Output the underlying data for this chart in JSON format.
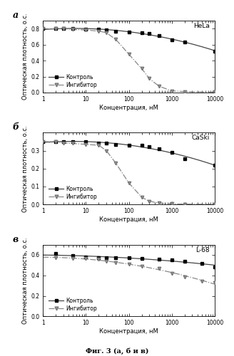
{
  "panels": [
    {
      "label": "а",
      "cell_line": "HeLa",
      "ylim": [
        0.0,
        0.9
      ],
      "yticks": [
        0.0,
        0.2,
        0.4,
        0.6,
        0.8
      ],
      "ctrl_x": [
        1,
        2,
        3,
        5,
        10,
        20,
        30,
        50,
        100,
        200,
        300,
        500,
        1000,
        2000,
        10000
      ],
      "ctrl_y": [
        0.8,
        0.8,
        0.8,
        0.8,
        0.795,
        0.79,
        0.785,
        0.765,
        0.76,
        0.752,
        0.742,
        0.718,
        0.66,
        0.63,
        0.52
      ],
      "inh_x": [
        1,
        2,
        3,
        5,
        10,
        20,
        30,
        50,
        100,
        200,
        300,
        500,
        1000,
        2000,
        10000
      ],
      "inh_y": [
        0.8,
        0.8,
        0.8,
        0.79,
        0.785,
        0.77,
        0.75,
        0.665,
        0.48,
        0.3,
        0.175,
        0.08,
        0.02,
        0.01,
        0.005
      ],
      "inh_fit_sigmoid": true
    },
    {
      "label": "б",
      "cell_line": "CaSki",
      "ylim": [
        0.0,
        0.4
      ],
      "yticks": [
        0.0,
        0.1,
        0.2,
        0.3
      ],
      "ctrl_x": [
        1,
        2,
        3,
        5,
        10,
        20,
        30,
        50,
        100,
        200,
        300,
        500,
        1000,
        2000,
        10000
      ],
      "ctrl_y": [
        0.35,
        0.35,
        0.35,
        0.35,
        0.35,
        0.342,
        0.34,
        0.332,
        0.33,
        0.33,
        0.322,
        0.31,
        0.29,
        0.255,
        0.22
      ],
      "inh_x": [
        1,
        2,
        3,
        5,
        10,
        20,
        30,
        50,
        100,
        200,
        300,
        500,
        1000,
        2000,
        10000
      ],
      "inh_y": [
        0.35,
        0.35,
        0.342,
        0.34,
        0.335,
        0.33,
        0.3,
        0.23,
        0.12,
        0.04,
        0.018,
        0.008,
        0.003,
        0.002,
        0.001
      ],
      "inh_fit_sigmoid": true
    },
    {
      "label": "в",
      "cell_line": "L-68",
      "ylim": [
        0.0,
        0.7
      ],
      "yticks": [
        0.0,
        0.2,
        0.4,
        0.6
      ],
      "ctrl_x": [
        2,
        5,
        10,
        20,
        30,
        50,
        100,
        200,
        500,
        1000,
        2000,
        5000,
        10000
      ],
      "ctrl_y": [
        0.612,
        0.592,
        0.582,
        0.572,
        0.572,
        0.572,
        0.57,
        0.562,
        0.56,
        0.552,
        0.538,
        0.518,
        0.482
      ],
      "inh_x": [
        2,
        5,
        10,
        20,
        30,
        50,
        100,
        200,
        500,
        1000,
        2000,
        5000,
        10000
      ],
      "inh_y": [
        0.572,
        0.568,
        0.562,
        0.555,
        0.535,
        0.525,
        0.512,
        0.492,
        0.47,
        0.42,
        0.382,
        0.342,
        0.33
      ],
      "inh_fit_sigmoid": false
    }
  ],
  "xlabel": "Концентрация, нМ",
  "ylabel": "Оптическая плотность, о.с.",
  "legend_ctrl": "Контроль",
  "legend_inh": "Ингибитор",
  "figure_label": "Фиг. 3 (а, б и в)",
  "ctrl_color": "#444444",
  "inh_color": "#888888",
  "bg_color": "#ffffff"
}
